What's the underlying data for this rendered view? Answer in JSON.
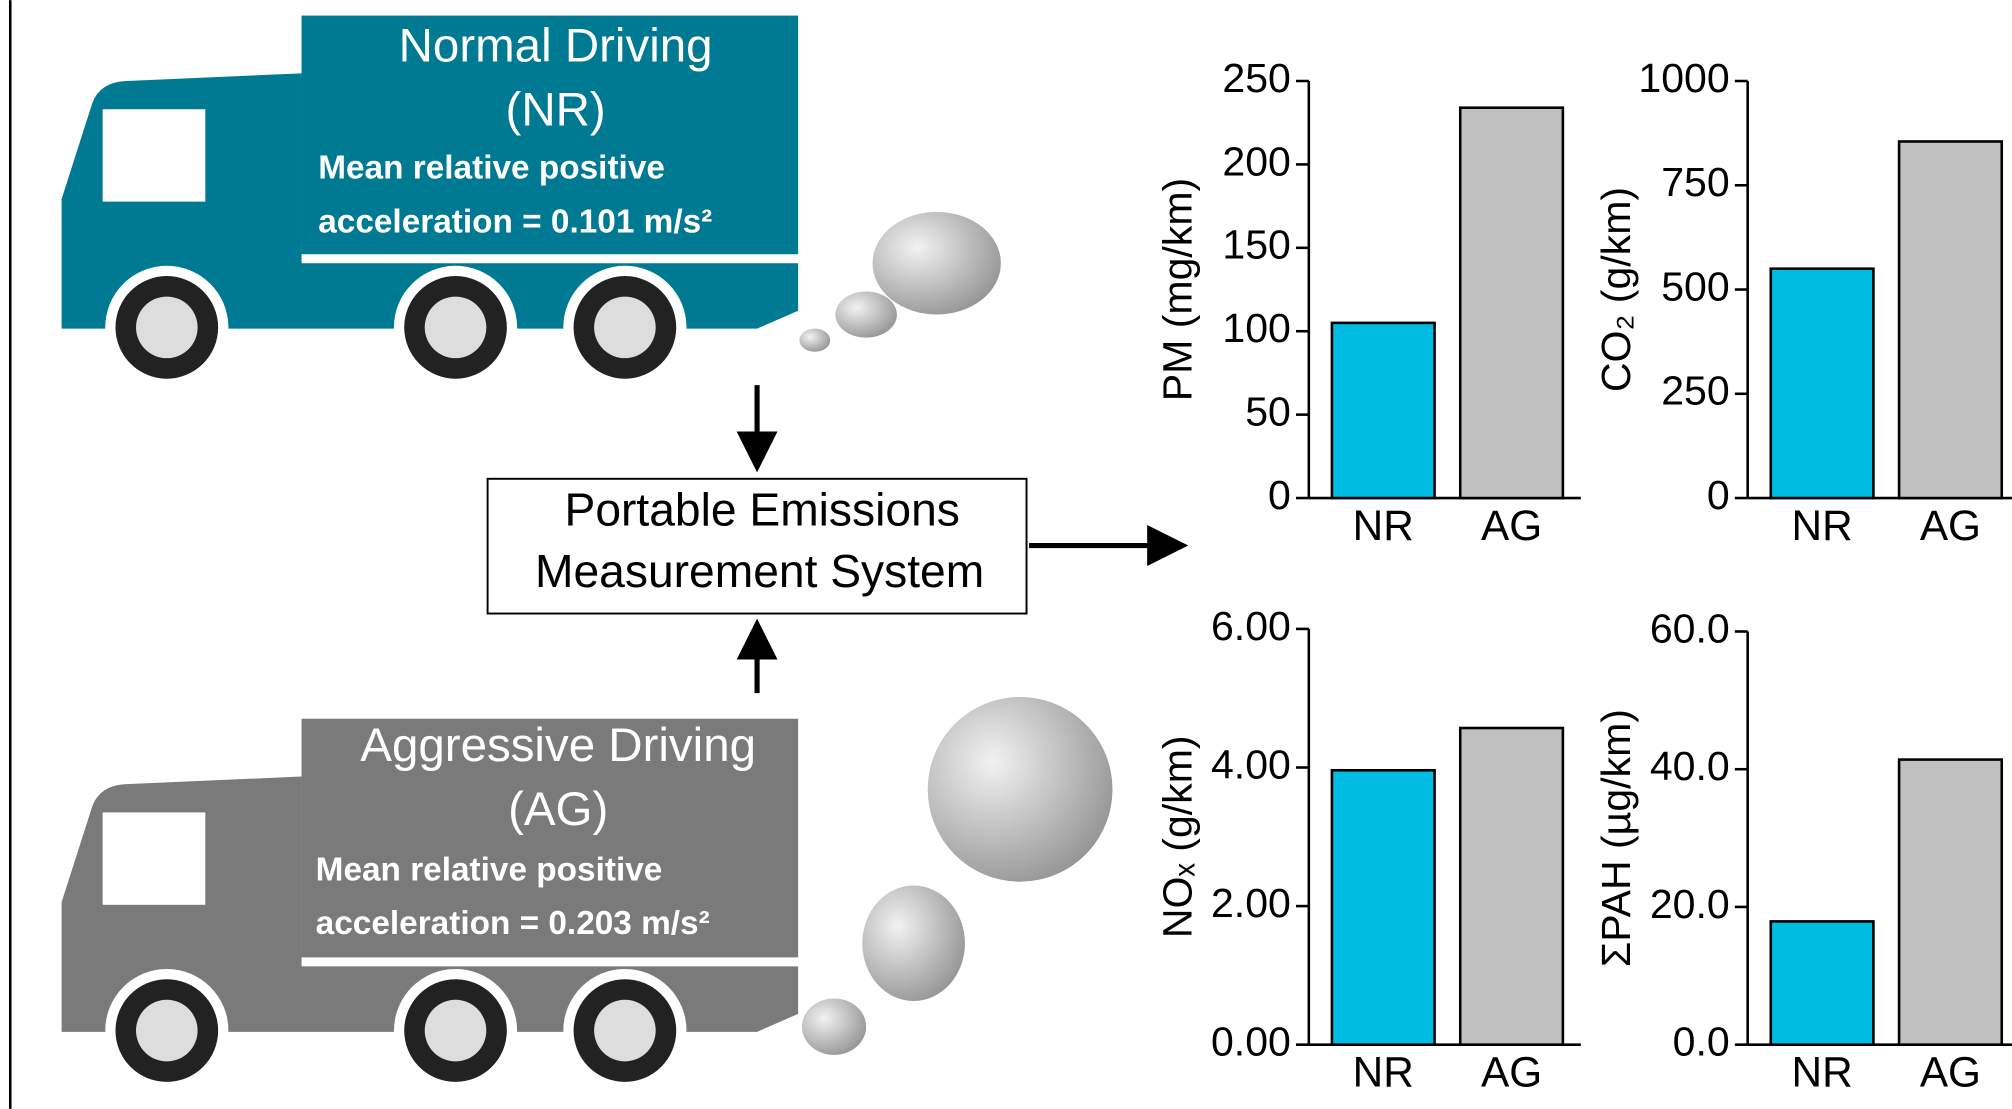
{
  "diagram": {
    "normal": {
      "title": "Normal Driving",
      "code": "(NR)",
      "line1": "Mean relative positive",
      "line2": "acceleration = 0.101 m/s²"
    },
    "aggressive": {
      "title": "Aggressive Driving",
      "code": "(AG)",
      "line1": "Mean relative positive",
      "line2": "acceleration = 0.203 m/s²"
    },
    "system": {
      "line1": "Portable Emissions",
      "line2": "Measurement System"
    }
  },
  "chart_data": [
    {
      "type": "bar",
      "y_label": "PM (mg/km)",
      "categories": [
        "NR",
        "AG"
      ],
      "values": [
        105,
        234
      ],
      "colors": [
        "#00bce2",
        "#c0c0c0"
      ],
      "ylim": [
        0,
        250
      ],
      "yticks": [
        0,
        50,
        100,
        150,
        200,
        250
      ]
    },
    {
      "type": "bar",
      "y_label": "CO₂ (g/km)",
      "categories": [
        "NR",
        "AG"
      ],
      "values": [
        550,
        855
      ],
      "colors": [
        "#00bce2",
        "#c0c0c0"
      ],
      "ylim": [
        0,
        1000
      ],
      "yticks": [
        0,
        250,
        500,
        750,
        1000
      ]
    },
    {
      "type": "bar",
      "y_label": "NOₓ (g/km)",
      "categories": [
        "NR",
        "AG"
      ],
      "values": [
        3.96,
        4.57
      ],
      "colors": [
        "#00bce2",
        "#c0c0c0"
      ],
      "ylim": [
        0,
        6
      ],
      "yticks": [
        {
          "value": 0,
          "label": "0.00"
        },
        {
          "value": 2,
          "label": "2.00"
        },
        {
          "value": 4,
          "label": "4.00"
        },
        {
          "value": 6,
          "label": "6.00"
        }
      ]
    },
    {
      "type": "bar",
      "y_label": "ΣPAH (µg/km)",
      "categories": [
        "NR",
        "AG"
      ],
      "values": [
        17.9,
        41.4
      ],
      "colors": [
        "#00bce2",
        "#c0c0c0"
      ],
      "ylim": [
        0,
        60
      ],
      "yticks": [
        {
          "value": 0,
          "label": "0.0"
        },
        {
          "value": 20,
          "label": "20.0"
        },
        {
          "value": 40,
          "label": "40.0"
        },
        {
          "value": 60,
          "label": "60.0"
        }
      ]
    }
  ]
}
